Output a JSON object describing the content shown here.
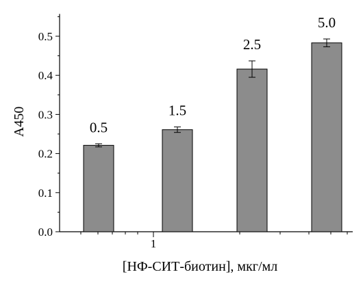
{
  "chart_data": {
    "type": "bar",
    "title": "",
    "xlabel": "[НФ-СИТ-биотин], мкг/мл",
    "ylabel": "A450",
    "categories": [
      "0.5",
      "1.5",
      "2.5",
      "5.0"
    ],
    "values": [
      0.221,
      0.261,
      0.416,
      0.483
    ],
    "errors": [
      0.004,
      0.007,
      0.021,
      0.01
    ],
    "data_labels": [
      "0.5",
      "1.5",
      "2.5",
      "5.0"
    ],
    "x_tick_labels": [
      "1"
    ],
    "ylim": [
      0.0,
      0.55
    ],
    "yticks": [
      0.0,
      0.1,
      0.2,
      0.3,
      0.4,
      0.5
    ],
    "ytick_labels": [
      "0.0",
      "0.1",
      "0.2",
      "0.3",
      "0.4",
      "0.5"
    ],
    "grid": false,
    "bar_color": "#8c8c8c",
    "bar_stroke": "#000000"
  }
}
